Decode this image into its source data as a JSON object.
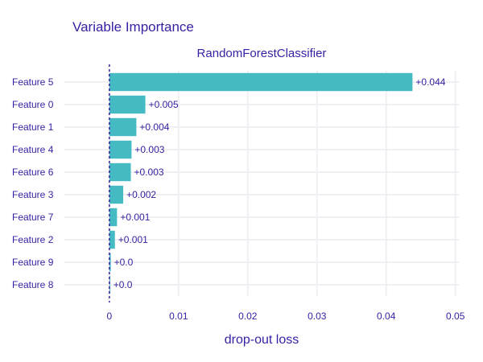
{
  "title": "Variable Importance",
  "chart_data": {
    "type": "bar",
    "orientation": "horizontal",
    "subtitle": "RandomForestClassifier",
    "xlabel": "drop-out loss",
    "ylabel": "",
    "xlim": [
      -0.0065,
      0.0505
    ],
    "xticks": [
      0,
      0.01,
      0.02,
      0.03,
      0.04,
      0.05
    ],
    "xtick_labels": [
      "0",
      "0.01",
      "0.02",
      "0.03",
      "0.04",
      "0.05"
    ],
    "grid": true,
    "baseline": 0,
    "categories": [
      "Feature 5",
      "Feature 0",
      "Feature 1",
      "Feature 4",
      "Feature 6",
      "Feature 3",
      "Feature 7",
      "Feature 2",
      "Feature 9",
      "Feature 8"
    ],
    "values": [
      0.0438,
      0.0052,
      0.0039,
      0.0032,
      0.0031,
      0.002,
      0.0011,
      0.0008,
      0.0002,
      0.0001
    ],
    "value_labels": [
      "+0.044",
      "+0.005",
      "+0.004",
      "+0.003",
      "+0.003",
      "+0.002",
      "+0.001",
      "+0.001",
      "+0.0",
      "+0.0"
    ],
    "bar_color": "#46bac2",
    "baseline_color": "#371ea3",
    "text_color": "#371ea3"
  }
}
